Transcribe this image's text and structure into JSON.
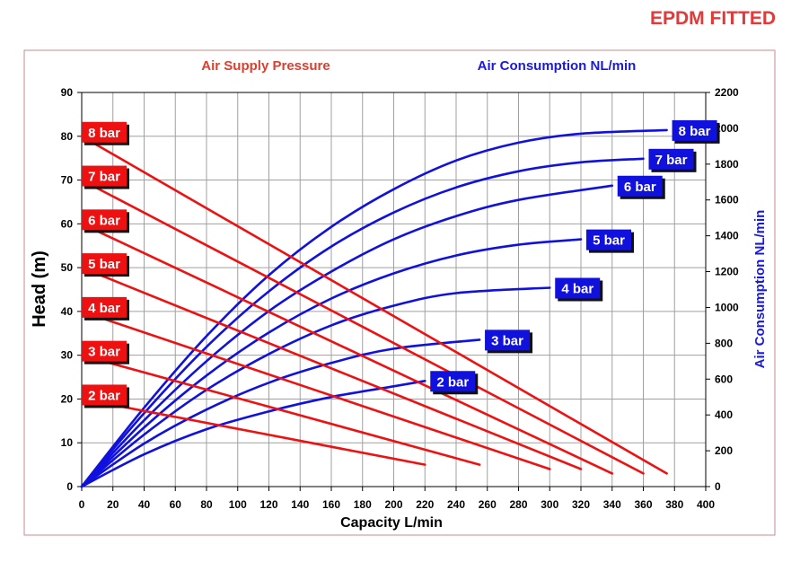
{
  "header": {
    "badge": "EPDM FITTED"
  },
  "colors": {
    "red": "#ee1111",
    "blue": "#1111dd",
    "title_red": "#d84030",
    "title_blue": "#1a1ad8",
    "frame": "#c98a8a"
  },
  "chart_data": {
    "type": "line",
    "legend_titles": {
      "pressure": "Air Supply Pressure",
      "consumption": "Air Consumption NL/min"
    },
    "xlabel": "Capacity L/min",
    "ylabel_left": "Head (m)",
    "ylabel_right": "Air Consumption NL/min",
    "xlim": [
      0,
      400
    ],
    "ylim_left": [
      0,
      90
    ],
    "ylim_right": [
      0,
      2200
    ],
    "x_ticks": [
      "0",
      "20",
      "40",
      "60",
      "80",
      "100",
      "120",
      "140",
      "160",
      "180",
      "200",
      "220",
      "240",
      "260",
      "280",
      "300",
      "320",
      "340",
      "360",
      "380",
      "400"
    ],
    "y_ticks_left": [
      "0",
      "10",
      "20",
      "30",
      "40",
      "50",
      "60",
      "70",
      "80",
      "90"
    ],
    "y_ticks_right": [
      "0",
      "200",
      "400",
      "600",
      "800",
      "1000",
      "1200",
      "1400",
      "1600",
      "1800",
      "2000",
      "2200"
    ],
    "grid": true,
    "head_series": [
      {
        "name": "2 bar",
        "x": [
          0,
          220
        ],
        "y": [
          20,
          5
        ]
      },
      {
        "name": "3 bar",
        "x": [
          0,
          255
        ],
        "y": [
          30,
          5
        ]
      },
      {
        "name": "4 bar",
        "x": [
          0,
          300
        ],
        "y": [
          40,
          4
        ]
      },
      {
        "name": "5 bar",
        "x": [
          0,
          320
        ],
        "y": [
          50,
          4
        ]
      },
      {
        "name": "6 bar",
        "x": [
          0,
          340
        ],
        "y": [
          60,
          3
        ]
      },
      {
        "name": "7 bar",
        "x": [
          0,
          360
        ],
        "y": [
          70,
          3
        ]
      },
      {
        "name": "8 bar",
        "x": [
          0,
          375
        ],
        "y": [
          80,
          3
        ]
      }
    ],
    "air_series": [
      {
        "name": "2 bar",
        "x": [
          0,
          40,
          80,
          120,
          160,
          200,
          220
        ],
        "y": [
          0,
          180,
          320,
          420,
          500,
          560,
          590
        ]
      },
      {
        "name": "3 bar",
        "x": [
          0,
          40,
          80,
          120,
          160,
          200,
          255
        ],
        "y": [
          0,
          240,
          430,
          580,
          690,
          770,
          820
        ]
      },
      {
        "name": "4 bar",
        "x": [
          0,
          40,
          80,
          120,
          160,
          200,
          240,
          300
        ],
        "y": [
          0,
          290,
          540,
          740,
          900,
          1010,
          1080,
          1110
        ]
      },
      {
        "name": "5 bar",
        "x": [
          0,
          40,
          80,
          120,
          160,
          200,
          240,
          280,
          320
        ],
        "y": [
          0,
          330,
          620,
          860,
          1050,
          1190,
          1290,
          1350,
          1380
        ]
      },
      {
        "name": "6 bar",
        "x": [
          0,
          40,
          80,
          120,
          160,
          200,
          240,
          280,
          340
        ],
        "y": [
          0,
          370,
          700,
          980,
          1200,
          1380,
          1510,
          1600,
          1680
        ]
      },
      {
        "name": "7 bar",
        "x": [
          0,
          40,
          80,
          120,
          160,
          200,
          240,
          280,
          320,
          360
        ],
        "y": [
          0,
          410,
          780,
          1090,
          1340,
          1530,
          1670,
          1760,
          1810,
          1830
        ]
      },
      {
        "name": "8 bar",
        "x": [
          0,
          40,
          80,
          120,
          160,
          200,
          240,
          280,
          320,
          375
        ],
        "y": [
          0,
          440,
          840,
          1180,
          1450,
          1660,
          1820,
          1920,
          1970,
          1990
        ]
      }
    ]
  }
}
